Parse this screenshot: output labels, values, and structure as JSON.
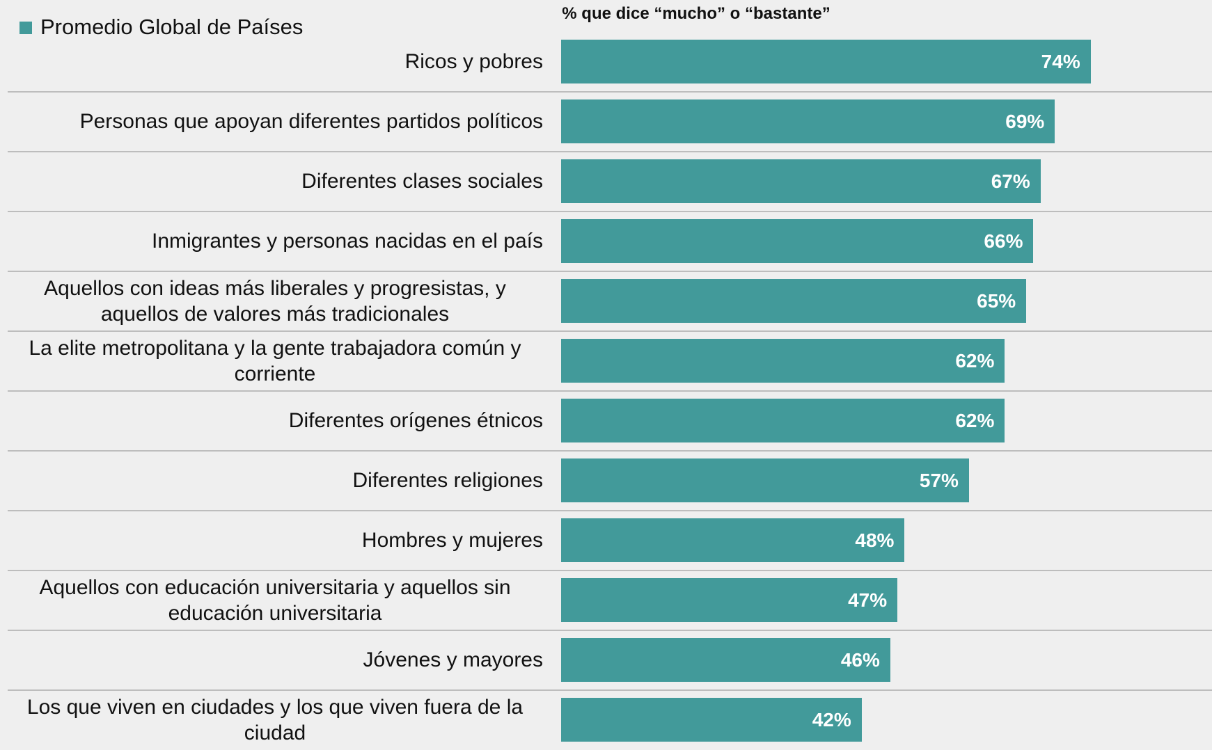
{
  "chart_data": {
    "type": "bar",
    "orientation": "horizontal",
    "title": "% que dice “mucho” o “bastante”",
    "categories": [
      "Ricos y pobres",
      "Personas que apoyan diferentes partidos políticos",
      "Diferentes clases sociales",
      "Inmigrantes y personas nacidas en el país",
      "Aquellos con ideas más liberales y progresistas, y aquellos de valores más tradicionales",
      "La elite metropolitana y la gente trabajadora común y corriente",
      "Diferentes orígenes étnicos",
      "Diferentes religiones",
      "Hombres y mujeres",
      "Aquellos con educación universitaria y aquellos sin educación universitaria",
      "Jóvenes y mayores",
      "Los que viven en ciudades y los que viven fuera de la ciudad"
    ],
    "series": [
      {
        "name": "Promedio Global de Países",
        "color": "#429a9a",
        "values": [
          74,
          69,
          67,
          66,
          65,
          62,
          62,
          57,
          48,
          47,
          46,
          42
        ],
        "value_labels": [
          "74%",
          "69%",
          "67%",
          "66%",
          "65%",
          "62%",
          "62%",
          "57%",
          "48%",
          "47%",
          "46%",
          "42%"
        ]
      }
    ]
  }
}
